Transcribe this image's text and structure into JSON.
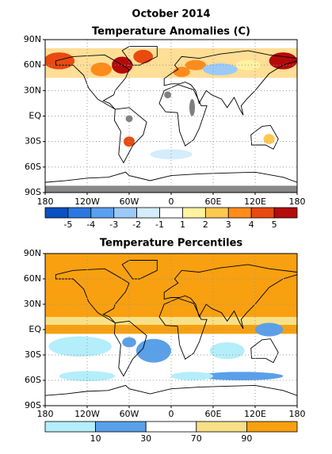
{
  "title": "October 2014",
  "maps": [
    {
      "title": "Temperature Anomalies (C)",
      "lat_ticks": [
        {
          "value": 90,
          "label": "90N"
        },
        {
          "value": 60,
          "label": "60N"
        },
        {
          "value": 30,
          "label": "30N"
        },
        {
          "value": 0,
          "label": "EQ"
        },
        {
          "value": -30,
          "label": "30S"
        },
        {
          "value": -60,
          "label": "60S"
        },
        {
          "value": -90,
          "label": "90S"
        }
      ],
      "lon_ticks": [
        {
          "value": -180,
          "label": "180"
        },
        {
          "value": -120,
          "label": "120W"
        },
        {
          "value": -60,
          "label": "60W"
        },
        {
          "value": 0,
          "label": "0"
        },
        {
          "value": 60,
          "label": "60E"
        },
        {
          "value": 120,
          "label": "120E"
        },
        {
          "value": 180,
          "label": "180"
        }
      ],
      "legend": {
        "colors": [
          "#0a50c0",
          "#2a78e0",
          "#5aa0f0",
          "#9ccaf8",
          "#d4ecfc",
          "#ffffff",
          "#fff2a0",
          "#ffc850",
          "#ff8c1a",
          "#e84a10",
          "#b40a0a"
        ],
        "labels": [
          -5,
          -4,
          -3,
          -2,
          -1,
          1,
          2,
          3,
          4,
          5
        ]
      }
    },
    {
      "title": "Temperature Percentiles",
      "lat_ticks": [
        {
          "value": 90,
          "label": "90N"
        },
        {
          "value": 60,
          "label": "60N"
        },
        {
          "value": 30,
          "label": "30N"
        },
        {
          "value": 0,
          "label": "EQ"
        },
        {
          "value": -30,
          "label": "30S"
        },
        {
          "value": -60,
          "label": "60S"
        },
        {
          "value": -90,
          "label": "90S"
        }
      ],
      "lon_ticks": [
        {
          "value": -180,
          "label": "180"
        },
        {
          "value": -120,
          "label": "120W"
        },
        {
          "value": -60,
          "label": "60W"
        },
        {
          "value": 0,
          "label": "0"
        },
        {
          "value": 60,
          "label": "60E"
        },
        {
          "value": 120,
          "label": "120E"
        },
        {
          "value": 180,
          "label": "180"
        }
      ],
      "legend": {
        "colors": [
          "#b4eefa",
          "#5aa0e8",
          "#ffffff",
          "#f8e088",
          "#f8a010"
        ],
        "labels": [
          10,
          30,
          70,
          90
        ]
      }
    }
  ]
}
